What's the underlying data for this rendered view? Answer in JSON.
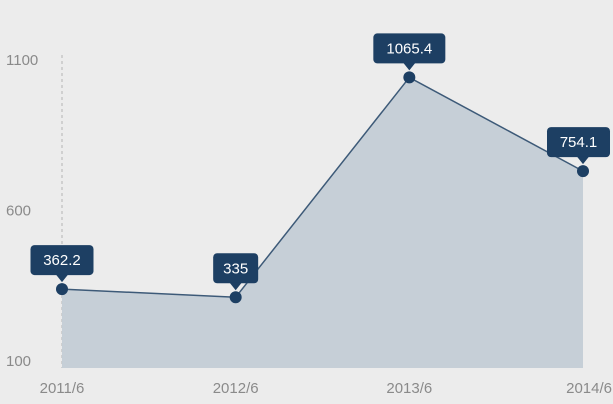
{
  "chart_data": {
    "type": "area",
    "categories": [
      "2011/6",
      "2012/6",
      "2013/6",
      "2014/6"
    ],
    "values": [
      362.2,
      335,
      1065.4,
      754.1
    ],
    "data_labels": [
      "362.2",
      "335",
      "1065.4",
      "754.1"
    ],
    "y_ticks": [
      100,
      600,
      1100
    ],
    "y_tick_labels": [
      "100",
      "600",
      "1100"
    ],
    "ylim": [
      100,
      1100
    ],
    "grid": false,
    "title": "",
    "xlabel": "",
    "ylabel": "",
    "colors": {
      "fill": "#c4cdd6",
      "line": "#3d5a78",
      "marker": "#1d3f63",
      "label_bg": "#1d3f63",
      "label_text": "#ffffff",
      "axis": "#b5b5b5",
      "tick_text": "#8a8a8a",
      "background": "#ececec"
    }
  }
}
